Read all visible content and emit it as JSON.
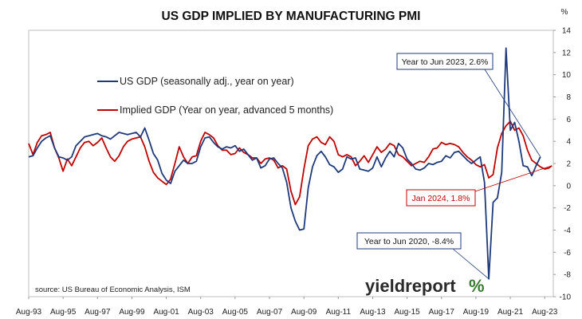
{
  "chart_data": {
    "type": "line",
    "title": "US GDP IMPLIED BY MANUFACTURING PMI",
    "yunit": "%",
    "ylim": [
      -10,
      14
    ],
    "yticks": [
      -10,
      -8,
      -6,
      -4,
      -2,
      0,
      2,
      4,
      6,
      8,
      10,
      12,
      14
    ],
    "xlim": [
      "Aug-93",
      "Feb-24"
    ],
    "xticks": [
      "Aug-93",
      "Aug-95",
      "Aug-97",
      "Aug-99",
      "Aug-01",
      "Aug-03",
      "Aug-05",
      "Aug-07",
      "Aug-09",
      "Aug-11",
      "Aug-13",
      "Aug-15",
      "Aug-17",
      "Aug-19",
      "Aug-21",
      "Aug-23"
    ],
    "grid": false,
    "legend_position": "upper-left",
    "series": [
      {
        "name": "US GDP (seasonally adj., year on year)",
        "color": "#1f3a7a",
        "points": [
          [
            "1993-08",
            2.6
          ],
          [
            "1993-11",
            2.7
          ],
          [
            "1994-02",
            3.4
          ],
          [
            "1994-05",
            4.0
          ],
          [
            "1994-08",
            4.3
          ],
          [
            "1994-11",
            4.5
          ],
          [
            "1995-02",
            3.4
          ],
          [
            "1995-05",
            2.6
          ],
          [
            "1995-08",
            2.5
          ],
          [
            "1995-11",
            2.3
          ],
          [
            "1996-02",
            2.6
          ],
          [
            "1996-05",
            3.6
          ],
          [
            "1996-08",
            4.0
          ],
          [
            "1996-11",
            4.4
          ],
          [
            "1997-02",
            4.5
          ],
          [
            "1997-05",
            4.6
          ],
          [
            "1997-08",
            4.7
          ],
          [
            "1997-11",
            4.5
          ],
          [
            "1998-02",
            4.4
          ],
          [
            "1998-05",
            4.2
          ],
          [
            "1998-08",
            4.5
          ],
          [
            "1998-11",
            4.8
          ],
          [
            "1999-02",
            4.7
          ],
          [
            "1999-05",
            4.6
          ],
          [
            "1999-08",
            4.7
          ],
          [
            "1999-11",
            4.8
          ],
          [
            "2000-02",
            4.4
          ],
          [
            "2000-05",
            5.2
          ],
          [
            "2000-08",
            4.1
          ],
          [
            "2000-11",
            2.9
          ],
          [
            "2001-02",
            2.3
          ],
          [
            "2001-05",
            1.1
          ],
          [
            "2001-08",
            0.5
          ],
          [
            "2001-11",
            0.2
          ],
          [
            "2002-02",
            1.3
          ],
          [
            "2002-05",
            1.8
          ],
          [
            "2002-08",
            2.3
          ],
          [
            "2002-11",
            2.0
          ],
          [
            "2003-02",
            2.0
          ],
          [
            "2003-05",
            2.2
          ],
          [
            "2003-08",
            3.5
          ],
          [
            "2003-11",
            4.3
          ],
          [
            "2004-02",
            4.4
          ],
          [
            "2004-05",
            3.9
          ],
          [
            "2004-08",
            3.5
          ],
          [
            "2004-11",
            3.3
          ],
          [
            "2005-02",
            3.5
          ],
          [
            "2005-05",
            3.4
          ],
          [
            "2005-08",
            3.6
          ],
          [
            "2005-11",
            3.1
          ],
          [
            "2006-02",
            3.3
          ],
          [
            "2006-05",
            2.8
          ],
          [
            "2006-08",
            2.3
          ],
          [
            "2006-11",
            2.5
          ],
          [
            "2007-02",
            1.6
          ],
          [
            "2007-05",
            1.8
          ],
          [
            "2007-08",
            2.4
          ],
          [
            "2007-11",
            2.5
          ],
          [
            "2008-02",
            2.0
          ],
          [
            "2008-05",
            1.6
          ],
          [
            "2008-08",
            0.3
          ],
          [
            "2008-11",
            -2.0
          ],
          [
            "2009-02",
            -3.2
          ],
          [
            "2009-05",
            -4.0
          ],
          [
            "2009-08",
            -3.9
          ],
          [
            "2009-11",
            -0.2
          ],
          [
            "2010-02",
            1.7
          ],
          [
            "2010-05",
            2.7
          ],
          [
            "2010-08",
            3.1
          ],
          [
            "2010-11",
            2.6
          ],
          [
            "2011-02",
            1.9
          ],
          [
            "2011-05",
            1.7
          ],
          [
            "2011-08",
            1.2
          ],
          [
            "2011-11",
            1.5
          ],
          [
            "2012-02",
            2.6
          ],
          [
            "2012-05",
            2.4
          ],
          [
            "2012-08",
            2.5
          ],
          [
            "2012-11",
            1.5
          ],
          [
            "2013-02",
            1.4
          ],
          [
            "2013-05",
            1.3
          ],
          [
            "2013-08",
            1.6
          ],
          [
            "2013-11",
            2.6
          ],
          [
            "2014-02",
            1.7
          ],
          [
            "2014-05",
            2.5
          ],
          [
            "2014-08",
            3.1
          ],
          [
            "2014-11",
            2.6
          ],
          [
            "2015-02",
            3.8
          ],
          [
            "2015-05",
            3.4
          ],
          [
            "2015-08",
            2.4
          ],
          [
            "2015-11",
            2.0
          ],
          [
            "2016-02",
            1.5
          ],
          [
            "2016-05",
            1.4
          ],
          [
            "2016-08",
            1.6
          ],
          [
            "2016-11",
            2.0
          ],
          [
            "2017-02",
            1.9
          ],
          [
            "2017-05",
            2.1
          ],
          [
            "2017-08",
            2.2
          ],
          [
            "2017-11",
            2.7
          ],
          [
            "2018-02",
            2.5
          ],
          [
            "2018-05",
            3.0
          ],
          [
            "2018-08",
            3.1
          ],
          [
            "2018-11",
            2.7
          ],
          [
            "2019-02",
            2.3
          ],
          [
            "2019-05",
            2.0
          ],
          [
            "2019-08",
            2.3
          ],
          [
            "2019-11",
            2.6
          ],
          [
            "2020-02",
            0.3
          ],
          [
            "2020-05",
            -8.4
          ],
          [
            "2020-08",
            -1.5
          ],
          [
            "2020-11",
            -1.1
          ],
          [
            "2021-02",
            1.2
          ],
          [
            "2021-05",
            12.4
          ],
          [
            "2021-08",
            5.0
          ],
          [
            "2021-11",
            5.7
          ],
          [
            "2022-02",
            4.0
          ],
          [
            "2022-05",
            1.8
          ],
          [
            "2022-08",
            1.7
          ],
          [
            "2022-11",
            0.9
          ],
          [
            "2023-02",
            1.8
          ],
          [
            "2023-05",
            2.6
          ]
        ]
      },
      {
        "name": "Implied GDP (Year on year, advanced 5 months)",
        "color": "#c00000",
        "points": [
          [
            "1993-08",
            3.8
          ],
          [
            "1993-11",
            2.8
          ],
          [
            "1994-02",
            3.9
          ],
          [
            "1994-05",
            4.5
          ],
          [
            "1994-08",
            4.6
          ],
          [
            "1994-11",
            4.8
          ],
          [
            "1995-02",
            3.4
          ],
          [
            "1995-05",
            2.5
          ],
          [
            "1995-08",
            1.3
          ],
          [
            "1995-11",
            2.4
          ],
          [
            "1996-02",
            1.8
          ],
          [
            "1996-05",
            2.6
          ],
          [
            "1996-08",
            3.4
          ],
          [
            "1996-11",
            3.9
          ],
          [
            "1997-02",
            4.0
          ],
          [
            "1997-05",
            3.6
          ],
          [
            "1997-08",
            3.9
          ],
          [
            "1997-11",
            4.3
          ],
          [
            "1998-02",
            3.4
          ],
          [
            "1998-05",
            2.6
          ],
          [
            "1998-08",
            2.2
          ],
          [
            "1998-11",
            2.7
          ],
          [
            "1999-02",
            3.5
          ],
          [
            "1999-05",
            4.0
          ],
          [
            "1999-08",
            4.2
          ],
          [
            "1999-11",
            4.3
          ],
          [
            "2000-02",
            4.4
          ],
          [
            "2000-05",
            3.5
          ],
          [
            "2000-08",
            2.2
          ],
          [
            "2000-11",
            1.2
          ],
          [
            "2001-02",
            0.7
          ],
          [
            "2001-05",
            0.4
          ],
          [
            "2001-08",
            0.1
          ],
          [
            "2001-11",
            0.6
          ],
          [
            "2002-02",
            2.0
          ],
          [
            "2002-05",
            3.5
          ],
          [
            "2002-08",
            2.6
          ],
          [
            "2002-11",
            2.0
          ],
          [
            "2003-02",
            2.6
          ],
          [
            "2003-05",
            2.7
          ],
          [
            "2003-08",
            4.0
          ],
          [
            "2003-11",
            4.8
          ],
          [
            "2004-02",
            4.6
          ],
          [
            "2004-05",
            4.3
          ],
          [
            "2004-08",
            3.6
          ],
          [
            "2004-11",
            3.2
          ],
          [
            "2005-02",
            3.2
          ],
          [
            "2005-05",
            2.8
          ],
          [
            "2005-08",
            2.9
          ],
          [
            "2005-11",
            3.4
          ],
          [
            "2006-02",
            3.0
          ],
          [
            "2006-05",
            2.8
          ],
          [
            "2006-08",
            2.5
          ],
          [
            "2006-11",
            2.5
          ],
          [
            "2007-02",
            2.0
          ],
          [
            "2007-05",
            2.4
          ],
          [
            "2007-08",
            2.5
          ],
          [
            "2007-11",
            2.3
          ],
          [
            "2008-02",
            1.6
          ],
          [
            "2008-05",
            1.8
          ],
          [
            "2008-08",
            1.5
          ],
          [
            "2008-11",
            -0.5
          ],
          [
            "2009-02",
            -1.7
          ],
          [
            "2009-05",
            -1.0
          ],
          [
            "2009-08",
            1.5
          ],
          [
            "2009-11",
            3.6
          ],
          [
            "2010-02",
            4.2
          ],
          [
            "2010-05",
            4.4
          ],
          [
            "2010-08",
            3.9
          ],
          [
            "2010-11",
            3.7
          ],
          [
            "2011-02",
            4.4
          ],
          [
            "2011-05",
            4.0
          ],
          [
            "2011-08",
            2.8
          ],
          [
            "2011-11",
            2.6
          ],
          [
            "2012-02",
            2.8
          ],
          [
            "2012-05",
            2.6
          ],
          [
            "2012-08",
            1.8
          ],
          [
            "2012-11",
            2.2
          ],
          [
            "2013-02",
            2.7
          ],
          [
            "2013-05",
            2.1
          ],
          [
            "2013-08",
            2.8
          ],
          [
            "2013-11",
            3.5
          ],
          [
            "2014-02",
            3.0
          ],
          [
            "2014-05",
            3.3
          ],
          [
            "2014-08",
            3.8
          ],
          [
            "2014-11",
            3.6
          ],
          [
            "2015-02",
            2.8
          ],
          [
            "2015-05",
            2.6
          ],
          [
            "2015-08",
            2.2
          ],
          [
            "2015-11",
            1.8
          ],
          [
            "2016-02",
            2.0
          ],
          [
            "2016-05",
            2.2
          ],
          [
            "2016-08",
            2.1
          ],
          [
            "2016-11",
            2.6
          ],
          [
            "2017-02",
            3.3
          ],
          [
            "2017-05",
            3.4
          ],
          [
            "2017-08",
            3.9
          ],
          [
            "2017-11",
            3.7
          ],
          [
            "2018-02",
            3.8
          ],
          [
            "2018-05",
            3.7
          ],
          [
            "2018-08",
            3.5
          ],
          [
            "2018-11",
            3.0
          ],
          [
            "2019-02",
            2.6
          ],
          [
            "2019-05",
            2.3
          ],
          [
            "2019-08",
            1.9
          ],
          [
            "2019-11",
            1.7
          ],
          [
            "2020-02",
            1.9
          ],
          [
            "2020-05",
            0.7
          ],
          [
            "2020-08",
            1.0
          ],
          [
            "2020-11",
            3.4
          ],
          [
            "2021-02",
            4.7
          ],
          [
            "2021-05",
            5.4
          ],
          [
            "2021-08",
            5.8
          ],
          [
            "2021-11",
            5.0
          ],
          [
            "2022-02",
            5.2
          ],
          [
            "2022-05",
            4.5
          ],
          [
            "2022-08",
            3.2
          ],
          [
            "2022-11",
            2.3
          ],
          [
            "2023-02",
            2.0
          ],
          [
            "2023-05",
            1.7
          ],
          [
            "2023-08",
            1.5
          ],
          [
            "2023-11",
            1.6
          ],
          [
            "2024-01",
            1.8
          ]
        ]
      }
    ],
    "annotations": [
      {
        "text": "Year to Jun 2023, 2.6%",
        "color": "#1f3a7a",
        "target": [
          "2023-05",
          2.6
        ]
      },
      {
        "text": "Jan 2024, 1.8%",
        "color": "#c00000",
        "target": [
          "2024-01",
          1.8
        ]
      },
      {
        "text": "Year to Jun 2020, -8.4%",
        "color": "#1f3a7a",
        "target": [
          "2020-05",
          -8.4
        ]
      }
    ],
    "source": "source: US Bureau of Economic Analysis, ISM"
  },
  "branding": {
    "logo_text": "yieldreport",
    "logo_symbol": "%"
  }
}
